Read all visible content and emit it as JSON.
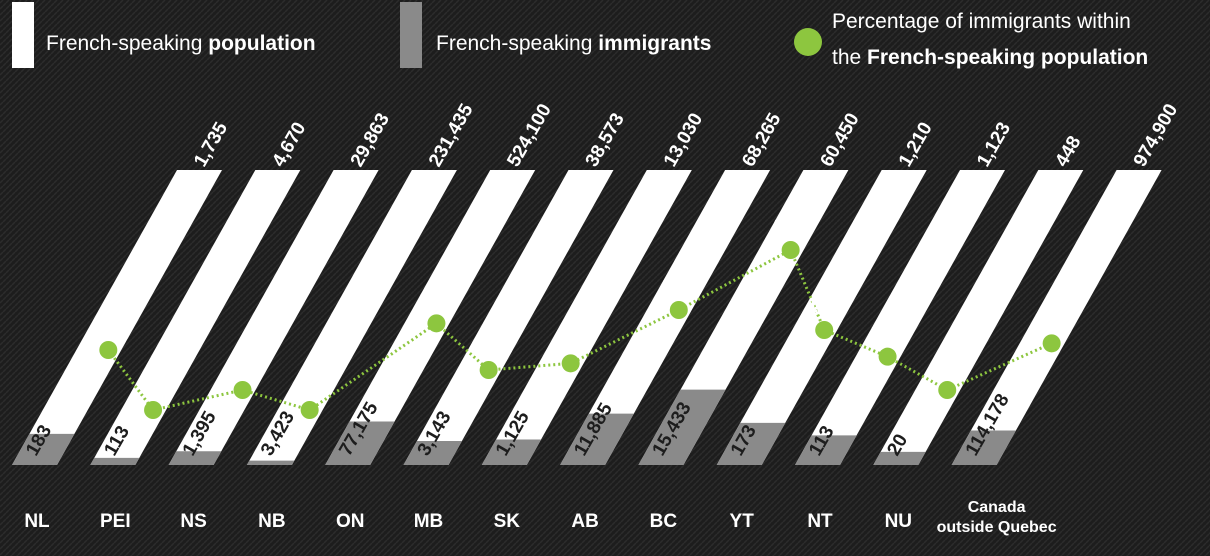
{
  "chart_data": {
    "type": "bar",
    "categories": [
      "NL",
      "PEI",
      "NS",
      "NB",
      "ON",
      "MB",
      "SK",
      "AB",
      "BC",
      "YT",
      "NT",
      "NU",
      "Canada outside Quebec"
    ],
    "series": [
      {
        "name": [
          "French-speaking",
          "population"
        ],
        "color": "#ffffff",
        "values": [
          1735,
          4670,
          29863,
          231435,
          524100,
          38573,
          13030,
          68265,
          60450,
          1210,
          1123,
          448,
          974900
        ],
        "value_labels": [
          "1,735",
          "4,670",
          "29,863",
          "231,435",
          "524,100",
          "38,573",
          "13,030",
          "68,265",
          "60,450",
          "1,210",
          "1,123",
          "448",
          "974,900"
        ]
      },
      {
        "name": [
          "French-speaking",
          "immigrants"
        ],
        "color": "#8a8a8a",
        "values": [
          183,
          113,
          1395,
          3423,
          77175,
          3143,
          1125,
          11885,
          15433,
          173,
          113,
          20,
          114178
        ],
        "value_labels": [
          "183",
          "113",
          "1,395",
          "3,423",
          "77,175",
          "3,143",
          "1,125",
          "11,885",
          "15,433",
          "173",
          "113",
          "20",
          "114,178"
        ]
      },
      {
        "name": [
          "Percentage of immigrants within",
          "the",
          "French-speaking population"
        ],
        "color": "#8dc63f",
        "values": [
          11,
          2,
          5,
          2,
          15,
          8,
          9,
          17,
          26,
          14,
          10,
          5,
          12
        ],
        "value_labels": [
          "11%",
          "2%",
          "5%",
          "2%",
          "15%",
          "8%",
          "9%",
          "17%",
          "26%",
          "14%",
          "10%",
          "5%",
          "12%"
        ]
      }
    ]
  }
}
